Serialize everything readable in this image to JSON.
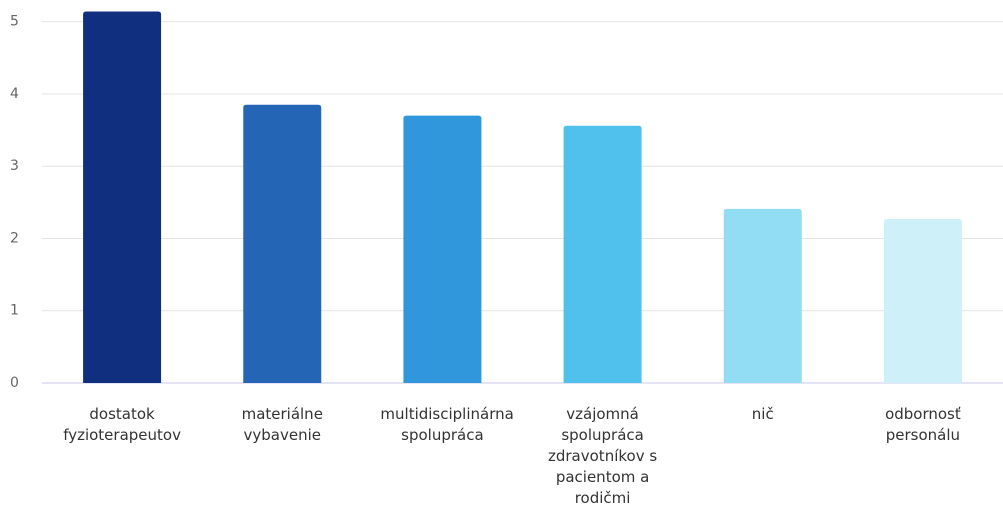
{
  "chart_data": {
    "type": "bar",
    "categories": [
      "dostatok fyzioterapeutov",
      "materiálne vybavenie",
      "multidisciplinárna spolupráca",
      "vzájomná spolupráca zdravotníkov s pacientom a rodičmi",
      "nič",
      "odbornosť personálu"
    ],
    "values": [
      5.14,
      3.85,
      3.7,
      3.56,
      2.41,
      2.27
    ],
    "colors": [
      "#10307f",
      "#2565b6",
      "#3197dc",
      "#4fc1ec",
      "#92dcf4",
      "#cdf0f9"
    ],
    "ylim": [
      0,
      5.3
    ],
    "yticks": [
      0,
      1,
      2,
      3,
      4,
      5
    ],
    "grid": true
  }
}
